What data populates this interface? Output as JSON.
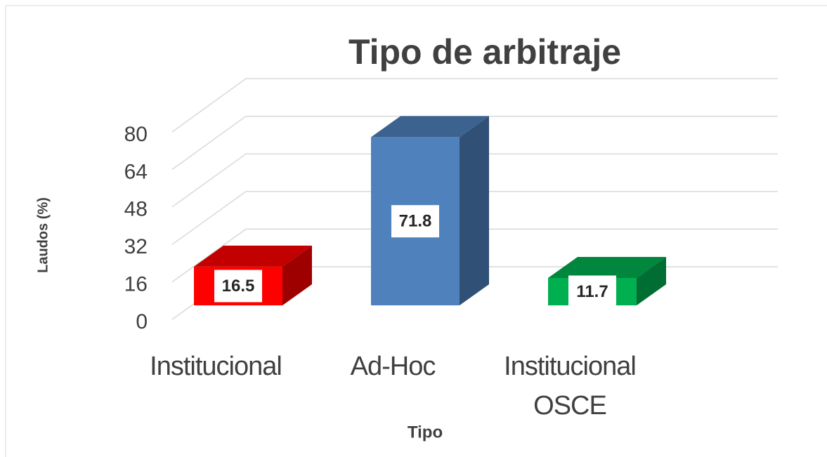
{
  "chart_data": {
    "type": "bar3d",
    "title": "Tipo de arbitraje",
    "xlabel": "Tipo",
    "ylabel": "Laudos (%)",
    "categories": [
      "Institucional",
      "Ad-Hoc",
      "Institucional OSCE"
    ],
    "values": [
      16.5,
      71.8,
      11.7
    ],
    "colors": [
      "#ff0000",
      "#4f81bd",
      "#00b050"
    ],
    "ylim": [
      0,
      80
    ],
    "yticks": [
      0,
      16,
      32,
      48,
      64,
      80
    ],
    "grid": true
  }
}
